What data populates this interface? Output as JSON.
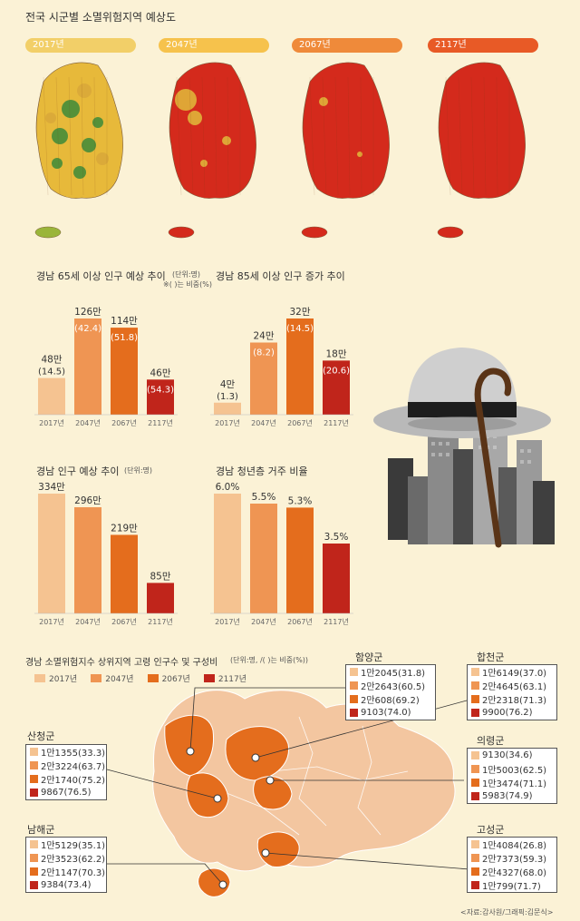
{
  "header": {
    "title": "전국 시군별 소멸위험지역 예상도"
  },
  "maps": [
    {
      "year": "2017년",
      "pill_color": "#f2cf68",
      "fill": "#e7b93a",
      "accent": "#3c8a3a"
    },
    {
      "year": "2047년",
      "pill_color": "#f6c24c",
      "fill": "#d42a1c",
      "accent": "#e0b23a"
    },
    {
      "year": "2067년",
      "pill_color": "#ef8a3a",
      "fill": "#d42a1c",
      "accent": "#e0b23a"
    },
    {
      "year": "2117년",
      "pill_color": "#e85a26",
      "fill": "#d42a1c",
      "accent": "#d42a1c"
    }
  ],
  "colors": [
    "#f5c391",
    "#ef9553",
    "#e46d1d",
    "#c0251b"
  ],
  "chart_data": [
    {
      "type": "bar",
      "title": "경남 65세 이상 인구 예상 추이",
      "unit_note": "(단위:명)",
      "pct_note": "※( )는 비중(%)",
      "categories": [
        "2017년",
        "2047년",
        "2067년",
        "2117년"
      ],
      "values": [
        480000,
        1260000,
        1140000,
        460000
      ],
      "labels": [
        "48만",
        "126만",
        "114만",
        "46만"
      ],
      "share_labels": [
        "(14.5)",
        "(42.4)",
        "(51.8)",
        "(54.3)"
      ]
    },
    {
      "type": "bar",
      "title": "경남 85세 이상 인구 증가 추이",
      "categories": [
        "2017년",
        "2047년",
        "2067년",
        "2117년"
      ],
      "values": [
        40000,
        240000,
        320000,
        180000
      ],
      "labels": [
        "4만",
        "24만",
        "32만",
        "18만"
      ],
      "share_labels": [
        "(1.3)",
        "(8.2)",
        "(14.5)",
        "(20.6)"
      ]
    },
    {
      "type": "bar",
      "title": "경남 인구 예상 추이",
      "unit_note": "(단위:명)",
      "categories": [
        "2017년",
        "2047년",
        "2067년",
        "2117년"
      ],
      "values": [
        3340000,
        2960000,
        2190000,
        850000
      ],
      "labels": [
        "334만",
        "296만",
        "219만",
        "85만"
      ]
    },
    {
      "type": "bar",
      "title": "경남 청년층 거주 비율",
      "categories": [
        "2017년",
        "2047년",
        "2067년",
        "2117년"
      ],
      "values": [
        6.0,
        5.5,
        5.3,
        3.5
      ],
      "labels": [
        "6.0%",
        "5.5%",
        "5.3%",
        "3.5%"
      ]
    }
  ],
  "bottom": {
    "title": "경남 소멸위험지수 상위지역 고령 인구수 및 구성비",
    "unit_note": "(단위:명, /( )는 비중(%))",
    "legend": [
      "2017년",
      "2047년",
      "2067년",
      "2117년"
    ],
    "counties": [
      {
        "name": "함양군",
        "rows": [
          "1만2045(31.8)",
          "2만2643(60.5)",
          "2만608(69.2)",
          "9103(74.0)"
        ]
      },
      {
        "name": "합천군",
        "rows": [
          "1만6149(37.0)",
          "2만4645(63.1)",
          "2만2318(71.3)",
          "9900(76.2)"
        ]
      },
      {
        "name": "산청군",
        "rows": [
          "1만1355(33.3)",
          "2만3224(63.7)",
          "2만1740(75.2)",
          "9867(76.5)"
        ]
      },
      {
        "name": "의령군",
        "rows": [
          "9130(34.6)",
          "1만5003(62.5)",
          "1만3474(71.1)",
          "5983(74.9)"
        ]
      },
      {
        "name": "남해군",
        "rows": [
          "1만5129(35.1)",
          "2만3523(62.2)",
          "2만1147(70.3)",
          "9384(73.4)"
        ]
      },
      {
        "name": "고성군",
        "rows": [
          "1만4084(26.8)",
          "2만7373(59.3)",
          "2만4327(68.0)",
          "1만799(71.7)"
        ]
      }
    ],
    "credit": "<자료:감사원/그래픽:김문식>"
  }
}
